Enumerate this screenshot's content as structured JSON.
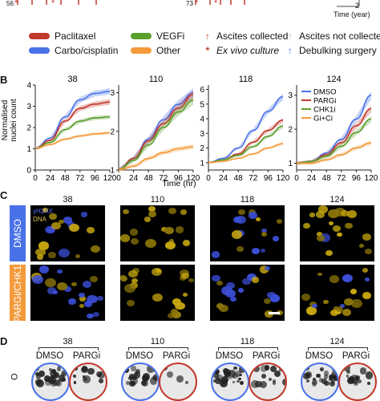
{
  "panel_a": {
    "patient_ids": [
      "56",
      "73"
    ],
    "time_axis_label": "Time (year)",
    "time_tick": "2",
    "legend_left": [
      {
        "label": "Paclitaxel",
        "color": "#c0392b"
      },
      {
        "label": "Carbo/cisplatin",
        "color": "#4a72e8"
      },
      {
        "label": "VEGFi",
        "color": "#5aa02c"
      },
      {
        "label": "Other",
        "color": "#f39a3b"
      }
    ],
    "legend_right": [
      {
        "label": "Ascites collected",
        "symbol": "↑",
        "color": "#c0392b"
      },
      {
        "label": "Ex vivo culture",
        "symbol": "*",
        "color": "#c0392b",
        "italic": true
      },
      {
        "label": "Ascites not collected",
        "symbol": "↑",
        "color": "#bbbbbb"
      },
      {
        "label": "Debulking surgery",
        "symbol": "↑",
        "color": "#4a72e8"
      }
    ]
  },
  "panel_b": {
    "letter": "B",
    "ylabel": "Normalised nuclei count",
    "xlabel": "Time (hr)",
    "legend": [
      {
        "label": "DMSO",
        "color": "#4a72e8"
      },
      {
        "label": "PARGi",
        "color": "#c0392b"
      },
      {
        "label": "CHK1i",
        "color": "#5aa02c"
      },
      {
        "label": "Gi+Ci",
        "color": "#f39a3b"
      }
    ]
  },
  "chart_data": [
    {
      "type": "line",
      "title": "38",
      "xlabel": "Time (hr)",
      "ylabel": "Normalised nuclei count",
      "x": [
        0,
        24,
        48,
        72,
        96,
        120
      ],
      "xlim": [
        0,
        120
      ],
      "ylim": [
        0,
        4
      ],
      "yticks": [
        0,
        1,
        2,
        3,
        4
      ],
      "series": [
        {
          "name": "DMSO",
          "values": [
            1.0,
            1.5,
            2.5,
            3.3,
            3.6,
            3.7
          ]
        },
        {
          "name": "PARGi",
          "values": [
            1.0,
            1.4,
            2.3,
            2.9,
            3.1,
            3.2
          ]
        },
        {
          "name": "CHK1i",
          "values": [
            1.0,
            1.3,
            1.9,
            2.3,
            2.45,
            2.5
          ]
        },
        {
          "name": "Gi+Ci",
          "values": [
            1.0,
            1.2,
            1.45,
            1.6,
            1.7,
            1.75
          ]
        }
      ]
    },
    {
      "type": "line",
      "title": "110",
      "xlabel": "Time (hr)",
      "x": [
        0,
        24,
        48,
        72,
        96,
        120
      ],
      "xlim": [
        0,
        120
      ],
      "ylim": [
        1,
        3.2
      ],
      "yticks": [
        1,
        2,
        3
      ],
      "series": [
        {
          "name": "DMSO",
          "values": [
            1.0,
            1.3,
            1.8,
            2.3,
            2.7,
            3.0
          ]
        },
        {
          "name": "PARGi",
          "values": [
            1.0,
            1.3,
            1.75,
            2.2,
            2.6,
            2.95
          ]
        },
        {
          "name": "CHK1i",
          "values": [
            1.0,
            1.25,
            1.65,
            2.1,
            2.5,
            2.8
          ]
        },
        {
          "name": "Gi+Ci",
          "values": [
            1.0,
            1.1,
            1.3,
            1.45,
            1.55,
            1.6
          ]
        }
      ]
    },
    {
      "type": "line",
      "title": "118",
      "xlabel": "Time (hr)",
      "x": [
        0,
        24,
        48,
        72,
        96,
        120
      ],
      "xlim": [
        0,
        120
      ],
      "ylim": [
        0.5,
        6.3
      ],
      "yticks": [
        1,
        2,
        3,
        4,
        5,
        6
      ],
      "series": [
        {
          "name": "DMSO",
          "values": [
            1.0,
            1.3,
            2.0,
            3.2,
            4.5,
            5.5
          ]
        },
        {
          "name": "PARGi",
          "values": [
            1.0,
            1.2,
            1.6,
            2.4,
            3.2,
            3.9
          ]
        },
        {
          "name": "CHK1i",
          "values": [
            1.0,
            1.2,
            1.5,
            2.1,
            2.8,
            3.5
          ]
        },
        {
          "name": "Gi+Ci",
          "values": [
            1.0,
            1.1,
            1.3,
            1.6,
            2.0,
            2.3
          ]
        }
      ]
    },
    {
      "type": "line",
      "title": "124",
      "xlabel": "Time (hr)",
      "x": [
        0,
        24,
        48,
        72,
        96,
        120
      ],
      "xlim": [
        0,
        120
      ],
      "ylim": [
        0.8,
        3.3
      ],
      "yticks": [
        1,
        2,
        3
      ],
      "series": [
        {
          "name": "DMSO",
          "values": [
            1.0,
            1.05,
            1.3,
            1.7,
            2.3,
            3.0
          ]
        },
        {
          "name": "PARGi",
          "values": [
            1.0,
            1.05,
            1.25,
            1.6,
            2.1,
            2.6
          ]
        },
        {
          "name": "CHK1i",
          "values": [
            1.0,
            1.05,
            1.2,
            1.5,
            1.9,
            2.3
          ]
        },
        {
          "name": "Gi+Ci",
          "values": [
            1.0,
            1.0,
            1.1,
            1.25,
            1.45,
            1.6
          ]
        }
      ]
    }
  ],
  "x_ticks": [
    "0",
    "24",
    "48",
    "72",
    "96",
    "120"
  ],
  "panel_c": {
    "letter": "C",
    "titles": [
      "38",
      "110",
      "118",
      "124"
    ],
    "rows": [
      {
        "label": "DMSO",
        "color": "#4a72e8"
      },
      {
        "label": "PARGi/CHK1i",
        "color": "#f39a3b"
      }
    ],
    "stain_labels": [
      "γH2AX",
      "DNA"
    ]
  },
  "panel_d": {
    "letter": "D",
    "titles": [
      "38",
      "110",
      "118",
      "124"
    ],
    "pair": [
      "DMSO",
      "PARGi"
    ],
    "row_label": "DMSO"
  }
}
